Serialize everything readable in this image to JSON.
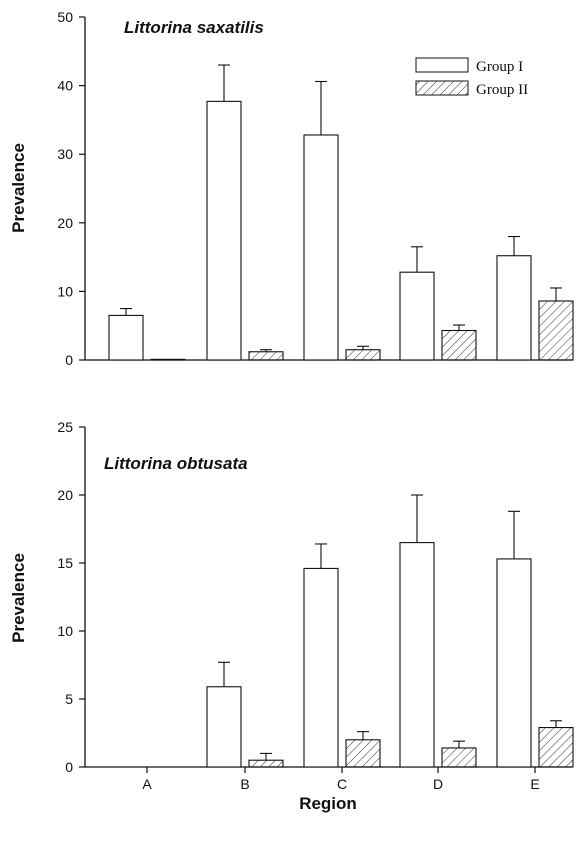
{
  "chart_data": [
    {
      "type": "bar",
      "title": "Littorina saxatilis",
      "ylabel": "Prevalence",
      "xlabel": "",
      "ylim": [
        0,
        50
      ],
      "yticks": [
        0,
        10,
        20,
        30,
        40,
        50
      ],
      "categories": [
        "A",
        "B",
        "C",
        "D",
        "E"
      ],
      "show_category_labels": false,
      "legend": "top-right",
      "series": [
        {
          "name": "Group I",
          "values": [
            6.5,
            37.7,
            32.8,
            12.8,
            15.2
          ],
          "errors": [
            1.0,
            5.3,
            7.8,
            3.7,
            2.8
          ],
          "fill": "white"
        },
        {
          "name": "Group II",
          "values": [
            0.1,
            1.2,
            1.5,
            4.3,
            8.6
          ],
          "errors": [
            0.0,
            0.3,
            0.5,
            0.8,
            1.9
          ],
          "fill": "hatched"
        }
      ]
    },
    {
      "type": "bar",
      "title": "Littorina obtusata",
      "ylabel": "Prevalence",
      "xlabel": "Region",
      "ylim": [
        0,
        25
      ],
      "yticks": [
        0,
        5,
        10,
        15,
        20,
        25
      ],
      "categories": [
        "A",
        "B",
        "C",
        "D",
        "E"
      ],
      "show_category_labels": true,
      "series": [
        {
          "name": "Group I",
          "values": [
            0.0,
            5.9,
            14.6,
            16.5,
            15.3
          ],
          "errors": [
            0.0,
            1.8,
            1.8,
            3.5,
            3.5
          ],
          "fill": "white"
        },
        {
          "name": "Group II",
          "values": [
            0.0,
            0.5,
            2.0,
            1.4,
            2.9
          ],
          "errors": [
            0.0,
            0.5,
            0.6,
            0.5,
            0.5
          ],
          "fill": "hatched"
        }
      ]
    }
  ],
  "colors": {
    "ink": "#111111",
    "bar_fill": "#ffffff",
    "hatch": "#333333"
  }
}
